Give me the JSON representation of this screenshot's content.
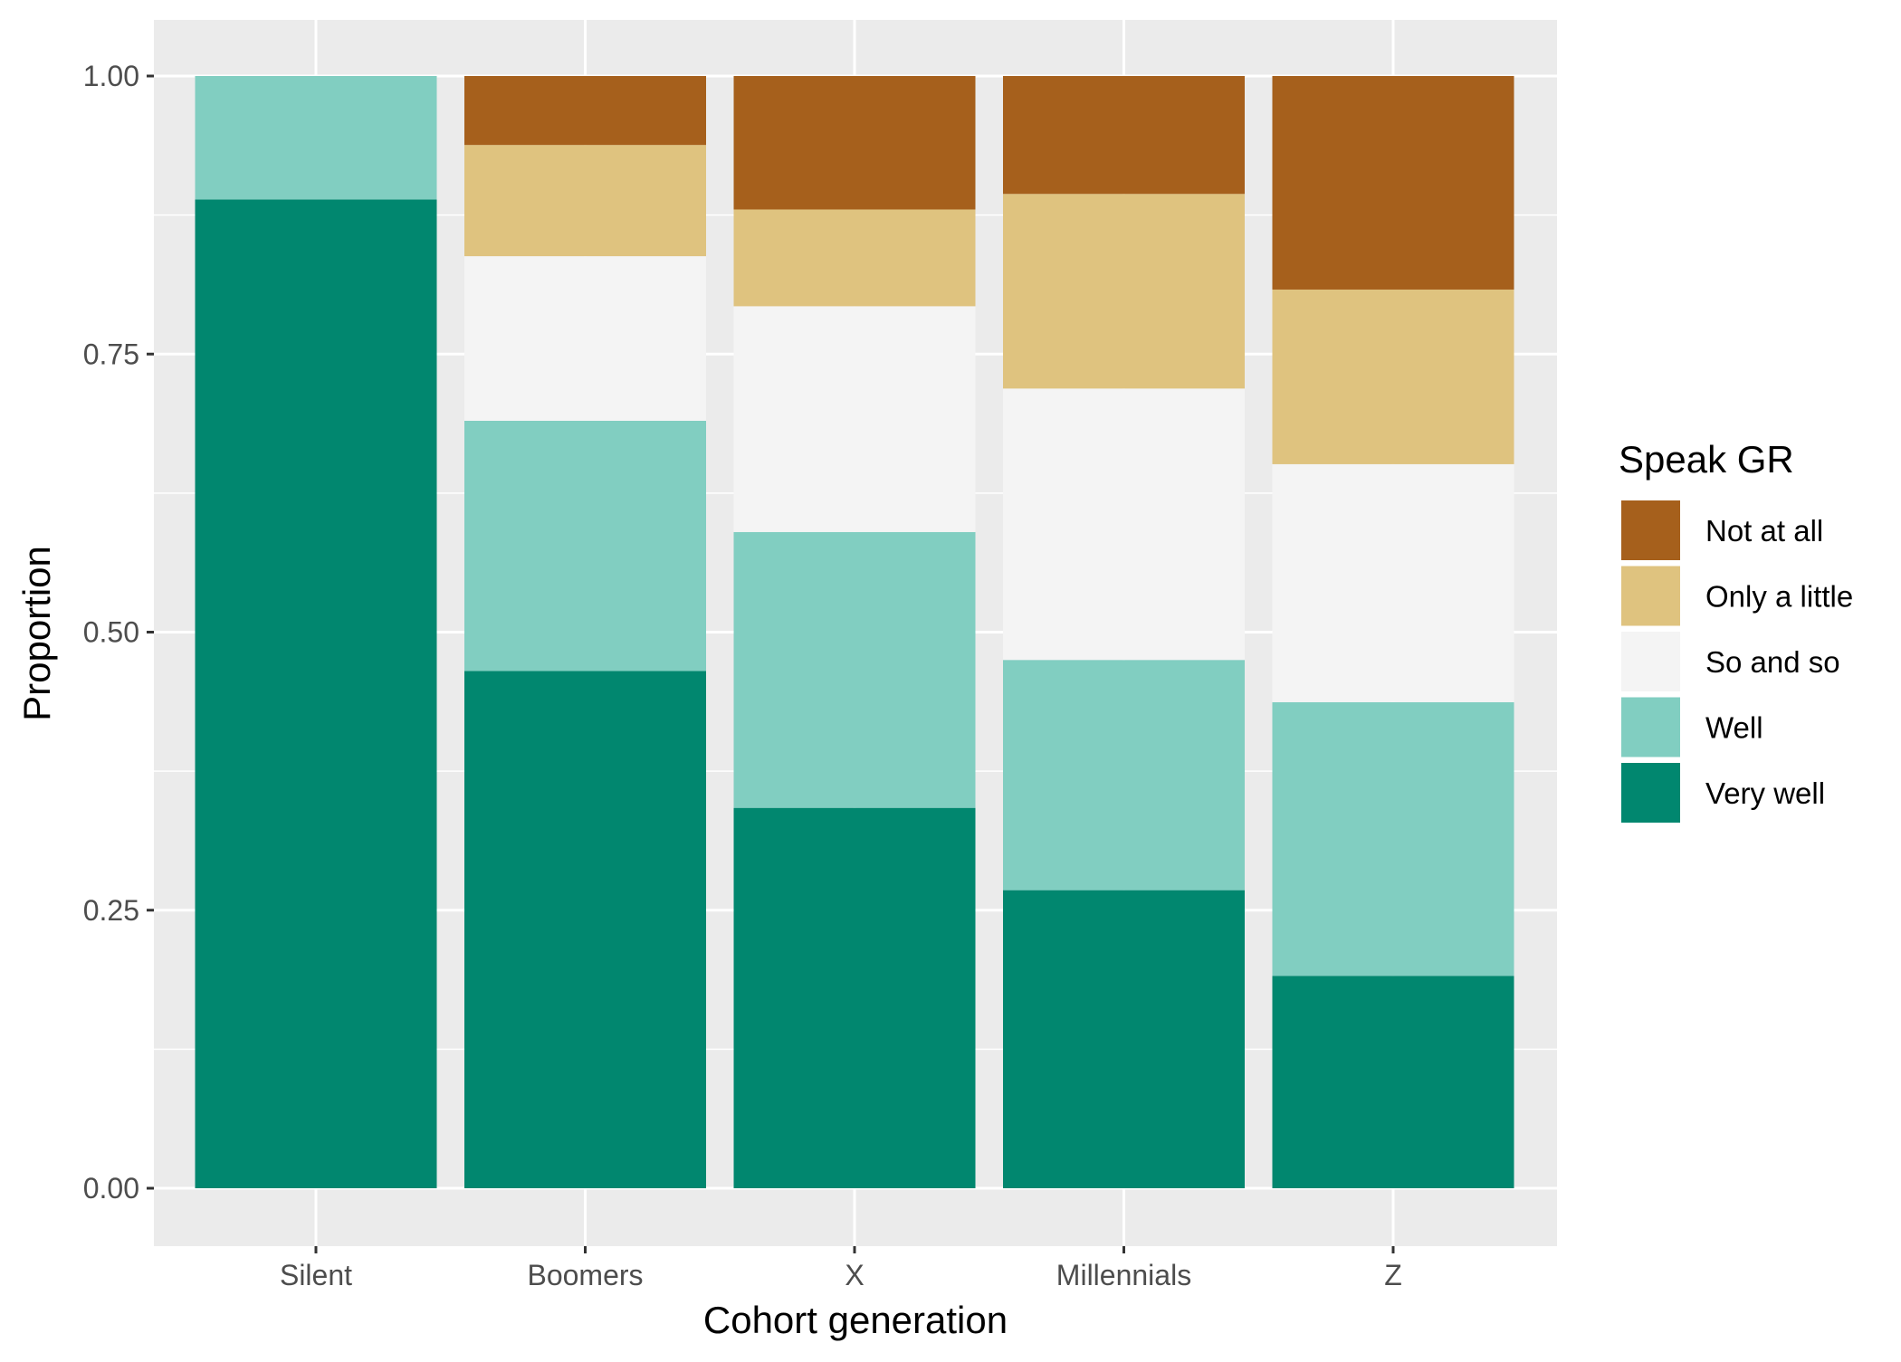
{
  "chart_data": {
    "type": "bar",
    "stacked": true,
    "xlabel": "Cohort generation",
    "ylabel": "Proportion",
    "ylim": [
      0,
      1
    ],
    "y_ticks": [
      "0.00",
      "0.25",
      "0.50",
      "0.75",
      "1.00"
    ],
    "y_tick_values": [
      0,
      0.25,
      0.5,
      0.75,
      1.0
    ],
    "categories": [
      "Silent",
      "Boomers",
      "X",
      "Millennials",
      "Z"
    ],
    "legend": {
      "title": "Speak GR",
      "placement": "right"
    },
    "series": [
      {
        "name": "Very well",
        "color": "#01876F",
        "values": [
          0.889,
          0.465,
          0.342,
          0.268,
          0.191
        ]
      },
      {
        "name": "Well",
        "color": "#81CEC1",
        "values": [
          0.111,
          0.225,
          0.248,
          0.207,
          0.246
        ]
      },
      {
        "name": "So and so",
        "color": "#F4F4F4",
        "values": [
          0.0,
          0.148,
          0.203,
          0.244,
          0.214
        ]
      },
      {
        "name": "Only a little",
        "color": "#DFC37F",
        "values": [
          0.0,
          0.1,
          0.087,
          0.175,
          0.157
        ]
      },
      {
        "name": "Not at all",
        "color": "#A6601C",
        "values": [
          0.0,
          0.062,
          0.12,
          0.106,
          0.192
        ]
      }
    ],
    "legend_order": [
      "Not at all",
      "Only a little",
      "So and so",
      "Well",
      "Very well"
    ],
    "panel_background": "#EBEBEB",
    "grid": true
  }
}
